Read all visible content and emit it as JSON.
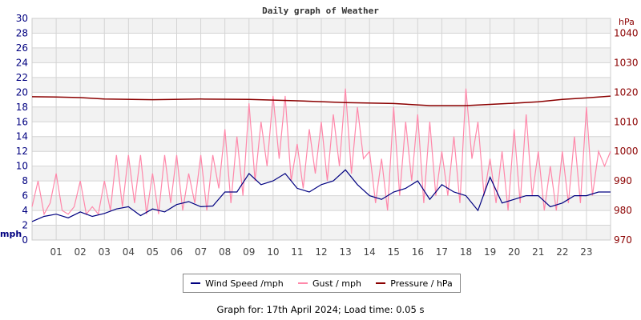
{
  "chart_data": {
    "type": "line",
    "title": "Daily graph of Weather",
    "left_axis": {
      "label": "mph",
      "ylim": [
        0,
        30
      ],
      "ticks": [
        0,
        2,
        4,
        6,
        8,
        10,
        12,
        14,
        16,
        18,
        20,
        22,
        24,
        26,
        28,
        30
      ]
    },
    "right_axis": {
      "label": "hPa",
      "ylim": [
        970,
        1045
      ],
      "ticks": [
        970,
        980,
        990,
        1000,
        1010,
        1020,
        1030,
        1040
      ]
    },
    "x_axis": {
      "xlim": [
        0,
        24
      ],
      "tick_labels": [
        "01",
        "02",
        "03",
        "04",
        "05",
        "06",
        "07",
        "08",
        "09",
        "10",
        "11",
        "12",
        "13",
        "14",
        "15",
        "16",
        "17",
        "18",
        "19",
        "20",
        "21",
        "22",
        "23"
      ]
    },
    "grid": true,
    "legend_position": "bottom",
    "colors": {
      "wind": "#000080",
      "gust": "#ff88aa",
      "pressure": "#8b0000",
      "left_axis": "#000080",
      "right_axis": "#8b0000"
    },
    "series": [
      {
        "name": "Wind Speed /mph",
        "axis": "left",
        "x_step_hours": 0.5,
        "values": [
          2.5,
          3.2,
          3.5,
          3.0,
          3.8,
          3.2,
          3.6,
          4.2,
          4.5,
          3.3,
          4.2,
          3.8,
          4.8,
          5.2,
          4.5,
          4.6,
          6.5,
          6.5,
          9.0,
          7.5,
          8.0,
          9.0,
          7.0,
          6.5,
          7.5,
          8.0,
          9.5,
          7.5,
          6.0,
          5.5,
          6.5,
          7.0,
          8.0,
          5.5,
          7.5,
          6.5,
          6.0,
          4.0,
          8.5,
          5.0,
          5.5,
          6.0,
          6.0,
          4.5,
          5.0,
          6.0,
          6.0,
          6.5,
          6.5
        ]
      },
      {
        "name": "Gust / mph",
        "axis": "left",
        "x_step_hours": 0.25,
        "values": [
          4.5,
          8,
          3.5,
          5,
          9,
          4,
          3.5,
          4.5,
          8,
          3.5,
          4.5,
          3.5,
          8,
          4,
          11.5,
          4.5,
          11.5,
          5,
          11.5,
          3.5,
          9,
          3.5,
          11.5,
          5,
          11.5,
          4,
          9,
          5,
          11.5,
          4,
          11.5,
          7,
          15,
          5,
          14,
          6,
          18.5,
          8,
          16,
          10,
          19.5,
          11,
          19.5,
          8,
          13,
          7,
          15,
          9,
          16,
          8,
          17,
          10,
          20.5,
          9,
          18,
          11,
          12,
          5,
          11,
          4,
          18,
          6,
          16,
          8,
          17,
          5,
          16,
          6,
          12,
          6,
          14,
          5,
          20.5,
          11,
          16,
          6,
          11,
          5,
          12,
          4,
          15,
          5,
          17,
          6,
          12,
          4,
          10,
          4,
          12,
          5,
          14,
          5,
          18,
          6,
          12,
          10,
          12
        ]
      },
      {
        "name": "Pressure / hPa",
        "axis": "right",
        "x": [
          0,
          1,
          2,
          3,
          5,
          7,
          9,
          11,
          13,
          15,
          16.5,
          18,
          19,
          20,
          21,
          22,
          23,
          24
        ],
        "values": [
          1018.5,
          1018.4,
          1018.2,
          1017.7,
          1017.5,
          1017.7,
          1017.6,
          1017.1,
          1016.5,
          1016.2,
          1015.5,
          1015.5,
          1015.9,
          1016.3,
          1016.8,
          1017.6,
          1018.1,
          1018.7
        ]
      }
    ]
  },
  "footer": "Graph for: 17th April 2024; Load time: 0.05 s"
}
